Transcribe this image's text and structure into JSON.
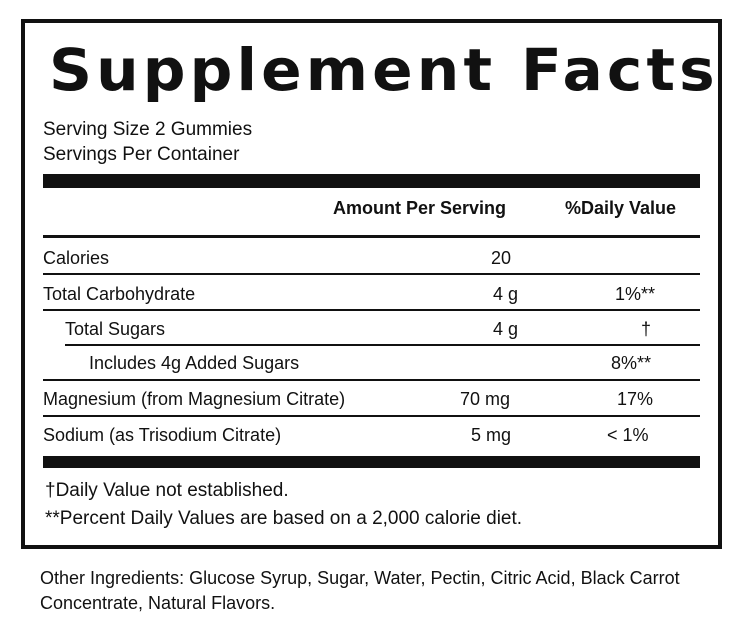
{
  "title": "Supplement Facts",
  "serving_size": "Serving Size 2 Gummies",
  "servings_per_container": "Servings Per Container",
  "header": {
    "amount": "Amount Per Serving",
    "daily_value": "%Daily Value"
  },
  "rows": [
    {
      "label": "Calories",
      "amount": "20",
      "dv": ""
    },
    {
      "label": "Total Carbohydrate",
      "amount": "4 g",
      "dv": "1%**"
    },
    {
      "label": "Total Sugars",
      "amount": "4 g",
      "dv": "†"
    },
    {
      "label": "Includes 4g Added Sugars",
      "amount": "",
      "dv": "8%**"
    },
    {
      "label": "Magnesium (from Magnesium Citrate)",
      "amount": "70 mg",
      "dv": "17%"
    },
    {
      "label": "Sodium (as Trisodium Citrate)",
      "amount": "5 mg",
      "dv": "< 1%"
    }
  ],
  "footnotes": {
    "dagger": "†Daily Value not established.",
    "percent": "**Percent Daily Values are based on a 2,000 calorie diet."
  },
  "other_ingredients": "Other Ingredients: Glucose Syrup, Sugar, Water, Pectin, Citric Acid, Black Carrot Concentrate, Natural Flavors."
}
